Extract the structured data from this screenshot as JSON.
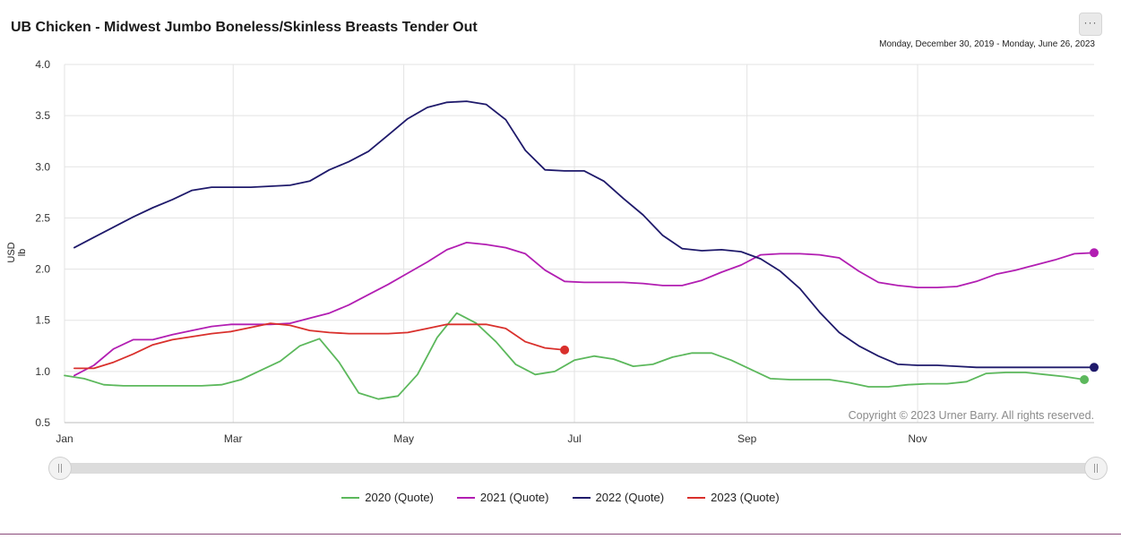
{
  "header": {
    "title": "UB Chicken - Midwest Jumbo Boneless/Skinless Breasts Tender Out",
    "date_range": "Monday, December 30, 2019 - Monday, June 26, 2023",
    "menu_label": "···"
  },
  "copyright": "Copyright © 2023 Urner Barry. All rights reserved.",
  "chart_data": {
    "type": "line",
    "title": "UB Chicken - Midwest Jumbo Boneless/Skinless Breasts Tender Out",
    "ylabel": "USD lb",
    "xlabel": "",
    "ylim": [
      0.5,
      4.0
    ],
    "yticks": [
      "4.0",
      "3.5",
      "3.0",
      "2.5",
      "2.0",
      "1.5",
      "1.0",
      "0.5"
    ],
    "xticks": [
      "Jan",
      "Mar",
      "May",
      "Jul",
      "Sep",
      "Nov"
    ],
    "grid": true,
    "legend_position": "bottom",
    "x_unit": "week of year",
    "series": [
      {
        "name": "2020 (Quote)",
        "color": "#5cb85c",
        "x": [
          0,
          1,
          2,
          3,
          5,
          7,
          8,
          9,
          10,
          11,
          12,
          13,
          14,
          15,
          16,
          17,
          18,
          19,
          20,
          21,
          22,
          23,
          24,
          25,
          26,
          27,
          28,
          29,
          30,
          31,
          32,
          33,
          34,
          36,
          37,
          38,
          39,
          40,
          41,
          42,
          43,
          44,
          45,
          46,
          47,
          48,
          49,
          50,
          51,
          52
        ],
        "values": [
          0.96,
          0.93,
          0.87,
          0.86,
          0.86,
          0.86,
          0.87,
          0.92,
          1.01,
          1.1,
          1.25,
          1.32,
          1.09,
          0.79,
          0.73,
          0.76,
          0.97,
          1.33,
          1.57,
          1.47,
          1.29,
          1.07,
          0.97,
          1.0,
          1.11,
          1.15,
          1.12,
          1.05,
          1.07,
          1.14,
          1.18,
          1.18,
          1.11,
          0.93,
          0.92,
          0.92,
          0.92,
          0.89,
          0.85,
          0.85,
          0.87,
          0.88,
          0.88,
          0.9,
          0.98,
          0.99,
          0.99,
          0.97,
          0.95,
          0.92
        ],
        "end_value": 0.92
      },
      {
        "name": "2021 (Quote)",
        "color": "#b21eb2",
        "x": [
          0.5,
          1.5,
          2.5,
          3.5,
          4.5,
          5.5,
          6.5,
          7.5,
          8.5,
          9.5,
          10.5,
          11.5,
          12.5,
          13.5,
          14.5,
          15.5,
          16.5,
          17.5,
          18.5,
          19.5,
          20.5,
          21.5,
          22.5,
          23.5,
          24.5,
          25.5,
          26.5,
          27.5,
          28.5,
          29.5,
          30.5,
          31.5,
          32.5,
          33.5,
          34.5,
          35.5,
          36.5,
          37.5,
          38.5,
          39.5,
          40.5,
          41.5,
          42.5,
          43.5,
          44.5,
          45.5,
          46.5,
          47.5,
          48.5,
          49.5,
          50.5,
          51.5,
          52.5
        ],
        "values": [
          0.96,
          1.06,
          1.22,
          1.31,
          1.31,
          1.36,
          1.4,
          1.44,
          1.46,
          1.46,
          1.46,
          1.47,
          1.52,
          1.57,
          1.65,
          1.75,
          1.85,
          1.96,
          2.07,
          2.19,
          2.26,
          2.24,
          2.21,
          2.15,
          1.99,
          1.88,
          1.87,
          1.87,
          1.87,
          1.86,
          1.84,
          1.84,
          1.89,
          1.97,
          2.04,
          2.14,
          2.15,
          2.15,
          2.14,
          2.11,
          1.98,
          1.87,
          1.84,
          1.82,
          1.82,
          1.83,
          1.88,
          1.95,
          1.99,
          2.04,
          2.09,
          2.15,
          2.16
        ],
        "end_value": 2.16
      },
      {
        "name": "2022 (Quote)",
        "color": "#1f1a6b",
        "x": [
          0.5,
          1.5,
          2.5,
          3.5,
          4.5,
          5.5,
          6.5,
          7.5,
          8.5,
          9.5,
          10.5,
          11.5,
          12.5,
          13.5,
          14.5,
          15.5,
          16.5,
          17.5,
          18.5,
          19.5,
          20.5,
          21.5,
          22.5,
          23.5,
          24.5,
          25.5,
          26.5,
          27.5,
          28.5,
          29.5,
          30.5,
          31.5,
          32.5,
          33.5,
          34.5,
          35.5,
          36.5,
          37.5,
          38.5,
          39.5,
          40.5,
          41.5,
          42.5,
          43.5,
          44.5,
          45.5,
          46.5,
          47.5,
          48.5,
          49.5,
          50.5,
          51.5,
          52.5
        ],
        "values": [
          2.21,
          2.31,
          2.41,
          2.51,
          2.6,
          2.68,
          2.77,
          2.8,
          2.8,
          2.8,
          2.81,
          2.82,
          2.86,
          2.97,
          3.05,
          3.15,
          3.31,
          3.47,
          3.58,
          3.63,
          3.64,
          3.61,
          3.46,
          3.16,
          2.97,
          2.96,
          2.96,
          2.86,
          2.69,
          2.53,
          2.33,
          2.2,
          2.18,
          2.19,
          2.17,
          2.1,
          1.98,
          1.81,
          1.58,
          1.38,
          1.25,
          1.15,
          1.07,
          1.06,
          1.06,
          1.05,
          1.04,
          1.04,
          1.04,
          1.04,
          1.04,
          1.04,
          1.04
        ],
        "end_value": 1.04
      },
      {
        "name": "2023 (Quote)",
        "color": "#d9302c",
        "x": [
          0.5,
          1.5,
          2.5,
          3.5,
          4.5,
          5.5,
          6.5,
          7.5,
          8.5,
          9.5,
          10.5,
          11.5,
          12.5,
          13.5,
          14.5,
          15.5,
          16.5,
          17.5,
          18.5,
          19.5,
          20.5,
          21.5,
          22.5,
          23.5,
          24.5,
          25.5
        ],
        "values": [
          1.03,
          1.03,
          1.09,
          1.17,
          1.26,
          1.31,
          1.34,
          1.37,
          1.39,
          1.43,
          1.47,
          1.45,
          1.4,
          1.38,
          1.37,
          1.37,
          1.37,
          1.38,
          1.42,
          1.46,
          1.46,
          1.46,
          1.42,
          1.29,
          1.23,
          1.21
        ],
        "end_value": 1.21
      }
    ]
  }
}
